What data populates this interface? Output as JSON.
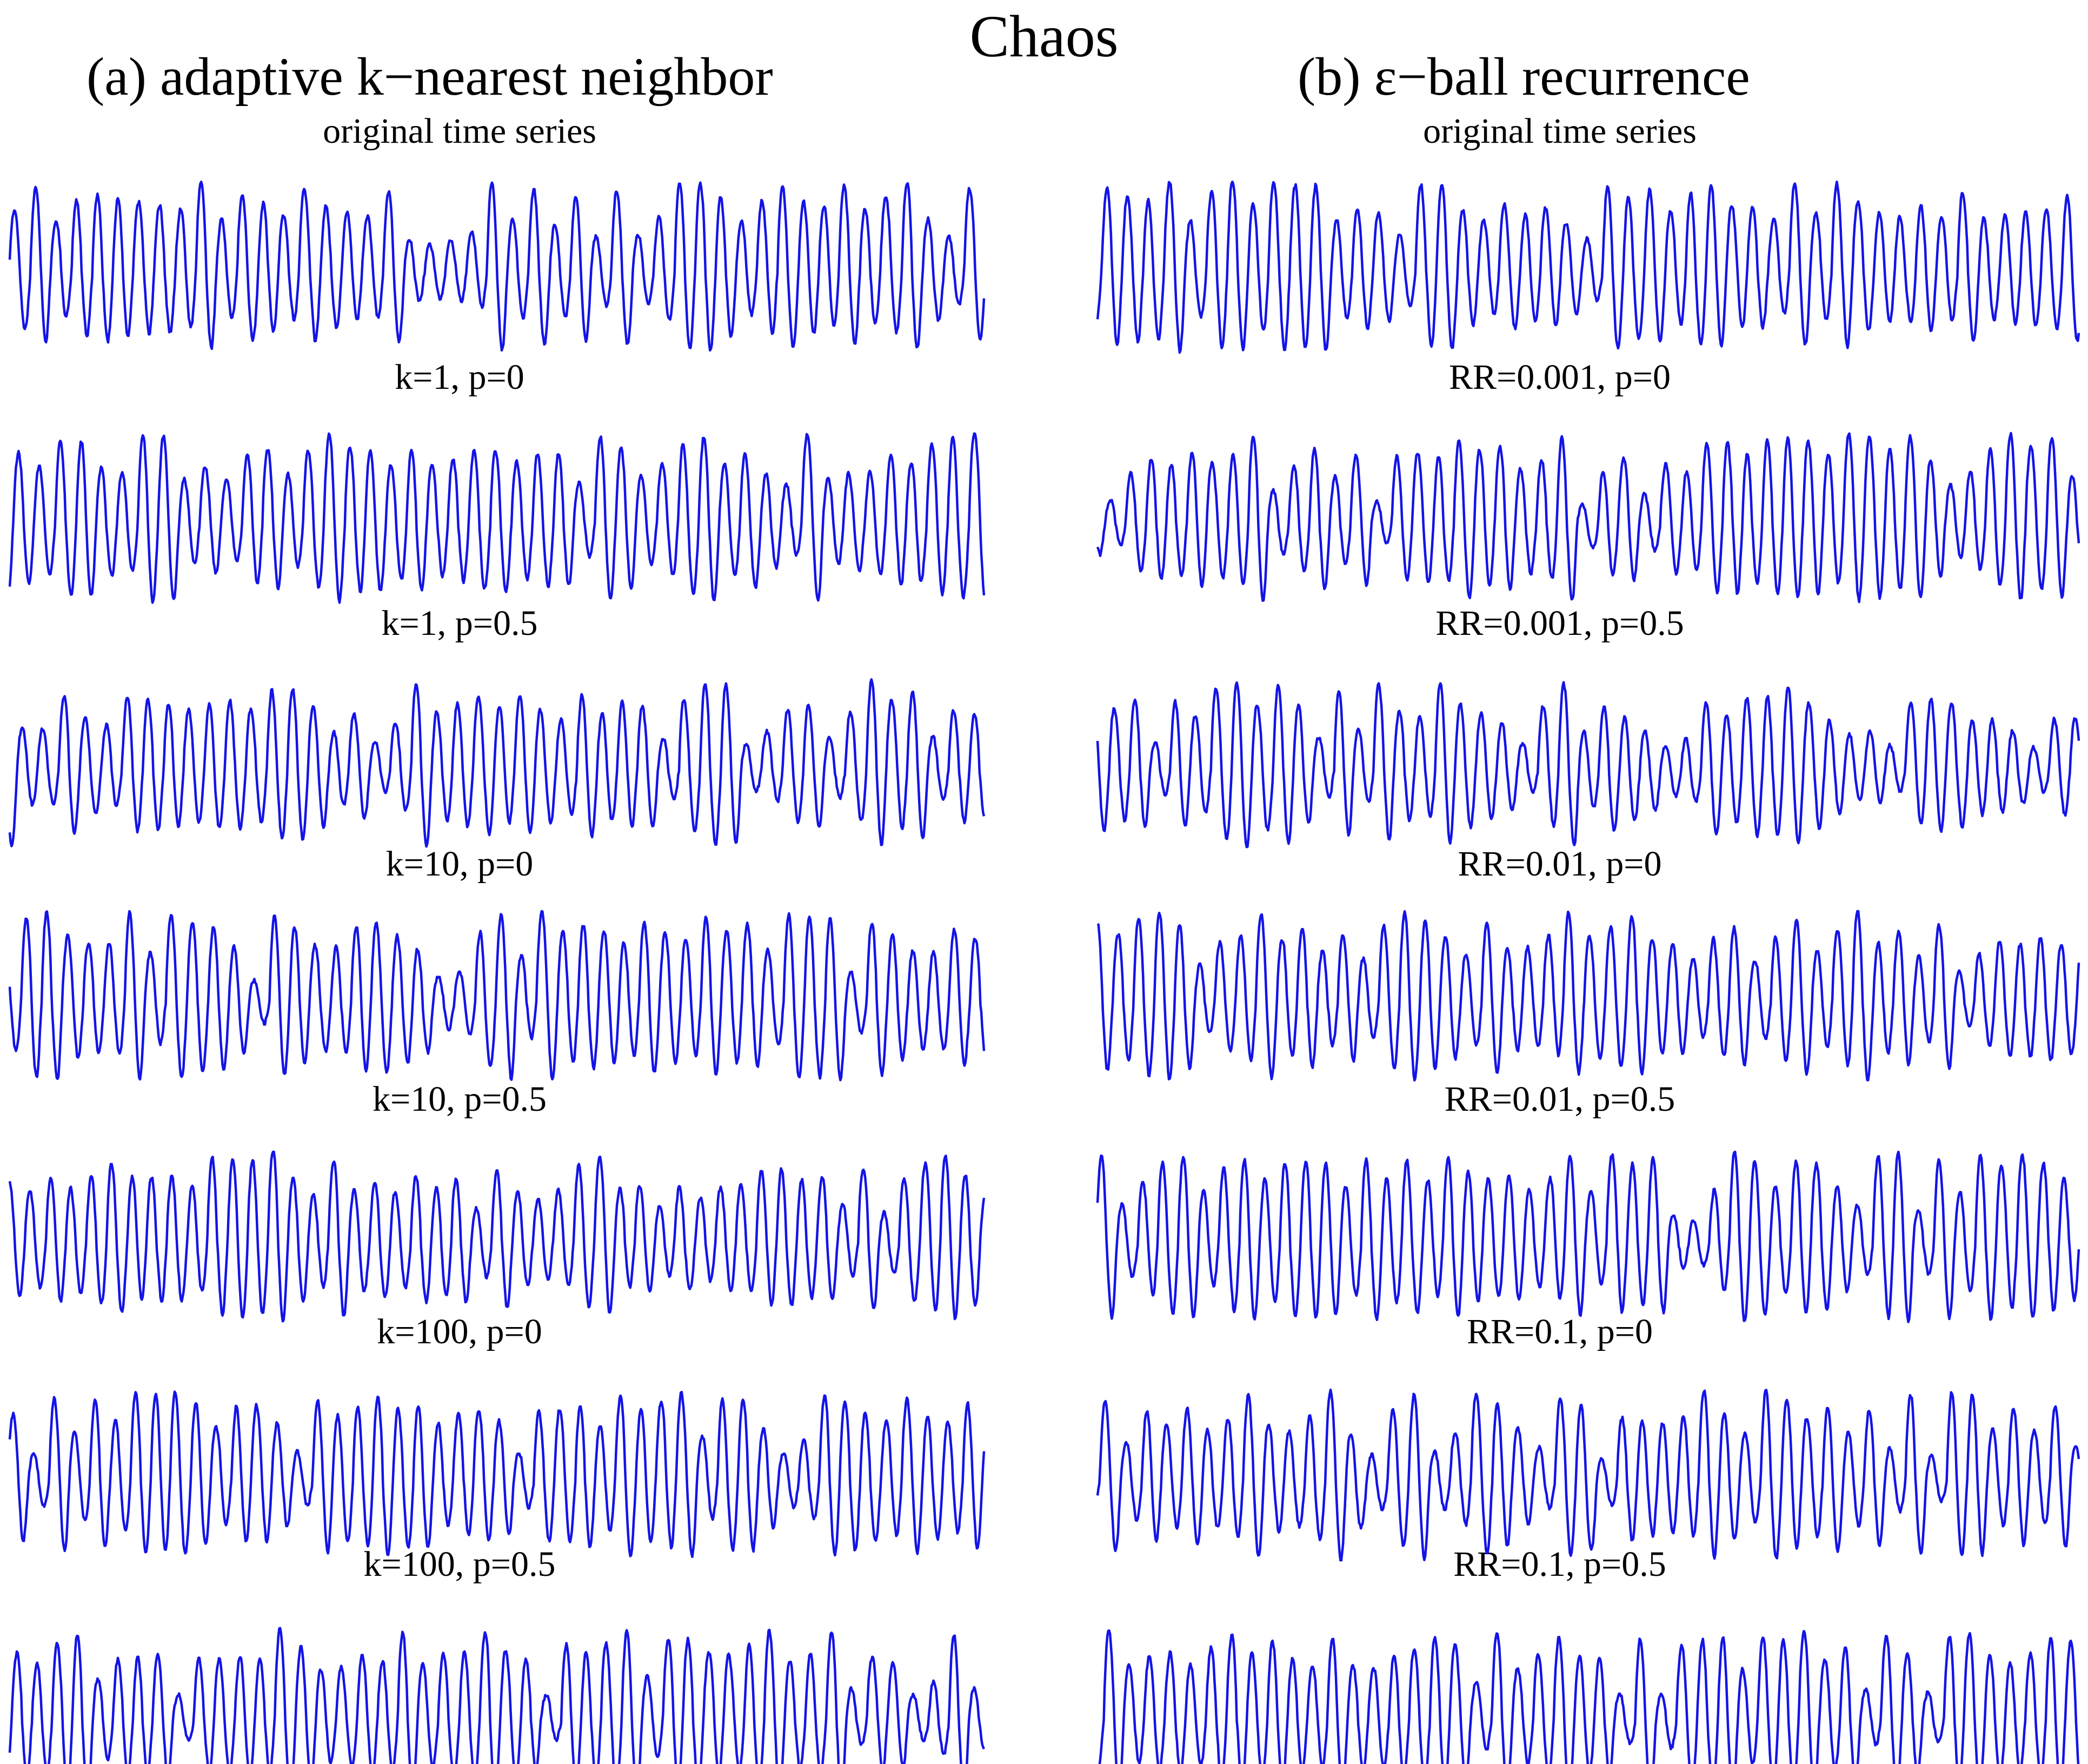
{
  "figure": {
    "title": "Chaos"
  },
  "colors": {
    "series": "#1414e6",
    "text": "#000000",
    "background": "#ffffff"
  },
  "chart_data": [
    {
      "type": "line",
      "panel": "left",
      "title": "(a) adaptive k−nearest neighbor",
      "axes_visible": false,
      "series": [
        {
          "caption": "original time series",
          "color": "#1414e6"
        },
        {
          "caption": "k=1, p=0",
          "color": "#1414e6"
        },
        {
          "caption": "k=1, p=0.5",
          "color": "#1414e6"
        },
        {
          "caption": "k=10, p=0",
          "color": "#1414e6"
        },
        {
          "caption": "k=10, p=0.5",
          "color": "#1414e6"
        },
        {
          "caption": "k=100, p=0",
          "color": "#1414e6"
        },
        {
          "caption": "k=100, p=0.5",
          "color": "#1414e6"
        }
      ]
    },
    {
      "type": "line",
      "panel": "right",
      "title": "(b) ε−ball recurrence",
      "axes_visible": false,
      "series": [
        {
          "caption": "original time series",
          "color": "#1414e6"
        },
        {
          "caption": "RR=0.001, p=0",
          "color": "#1414e6"
        },
        {
          "caption": "RR=0.001, p=0.5",
          "color": "#1414e6"
        },
        {
          "caption": "RR=0.01, p=0",
          "color": "#1414e6"
        },
        {
          "caption": "RR=0.01, p=0.5",
          "color": "#1414e6"
        },
        {
          "caption": "RR=0.1, p=0",
          "color": "#1414e6"
        },
        {
          "caption": "RR=0.1, p=0.5",
          "color": "#1414e6"
        }
      ]
    }
  ]
}
